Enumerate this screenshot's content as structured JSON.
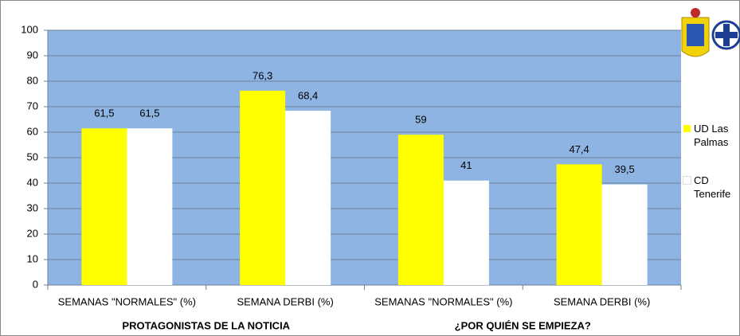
{
  "chart_data": {
    "type": "bar",
    "categories": [
      "SEMANAS \"NORMALES\" (%)",
      "SEMANA DERBI (%)",
      "SEMANAS \"NORMALES\" (%)",
      "SEMANA DERBI (%)"
    ],
    "group_labels": [
      "PROTAGONISTAS DE LA NOTICIA",
      "¿POR QUIÉN SE EMPIEZA?"
    ],
    "series": [
      {
        "name": "UD Las Palmas",
        "color": "#ffff00",
        "values": [
          61.5,
          76.3,
          59,
          47.4
        ],
        "value_labels": [
          "61,5",
          "76,3",
          "59",
          "47,4"
        ]
      },
      {
        "name": "CD Tenerife",
        "color": "#ffffff",
        "values": [
          61.5,
          68.4,
          41,
          39.5
        ],
        "value_labels": [
          "61,5",
          "68,4",
          "41",
          "39,5"
        ]
      }
    ],
    "ylim": [
      0,
      100
    ],
    "yticks": [
      0,
      10,
      20,
      30,
      40,
      50,
      60,
      70,
      80,
      90,
      100
    ],
    "grid": true
  }
}
